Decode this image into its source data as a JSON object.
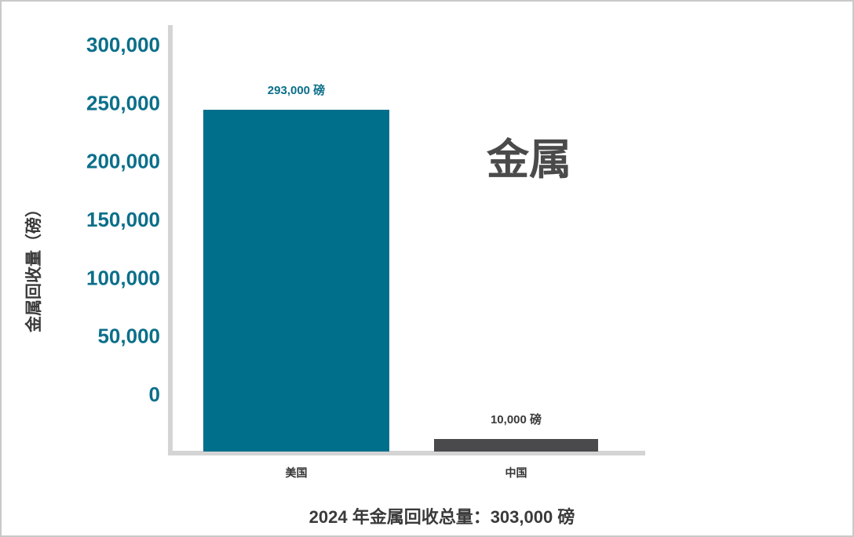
{
  "chart_data": {
    "type": "bar",
    "categories": [
      "美国",
      "中国"
    ],
    "values": [
      293000,
      10000
    ],
    "value_labels": [
      "293,000 磅",
      "10,000 磅"
    ],
    "colors": [
      "#006f8c",
      "#4a4a4c"
    ],
    "ylabel": "金属回收量（磅）",
    "yticks": [
      "0",
      "50,000",
      "100,000",
      "150,000",
      "200,000",
      "250,000",
      "300,000"
    ],
    "ytick_values": [
      0,
      50000,
      100000,
      150000,
      200000,
      250000,
      300000
    ],
    "ylim": [
      0,
      300000
    ],
    "annotation": "金属",
    "footer": "2024 年金属回收总量：303,000 磅",
    "grid": false
  }
}
